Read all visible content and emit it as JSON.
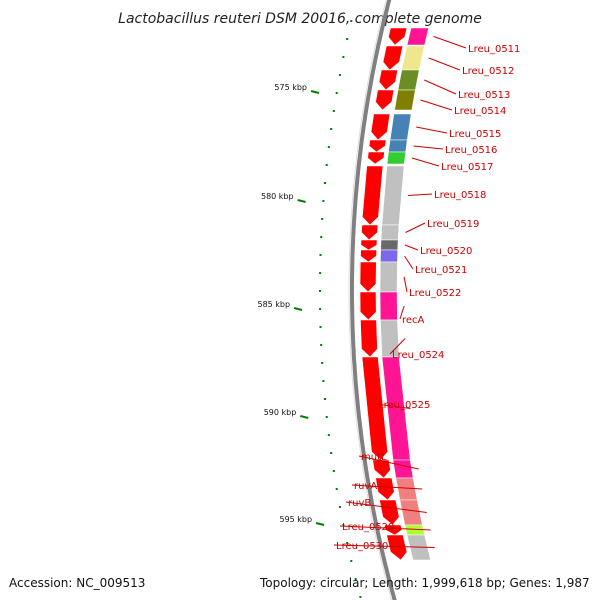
{
  "title": "Lactobacillus reuteri DSM 20016, complete genome",
  "accession": "Accession: NC_009513",
  "topology": "Topology: circular; Length: 1,999,618 bp; Genes: 1,987",
  "kbp_labels": [
    "575 kbp",
    "580 kbp",
    "585 kbp",
    "590 kbp",
    "595 kbp"
  ],
  "genes": [
    {
      "name": "Lreu_0511",
      "color": "#ff1493"
    },
    {
      "name": "Lreu_0512",
      "color": "#f0e68c"
    },
    {
      "name": "Lreu_0513",
      "color": "#6b8e23"
    },
    {
      "name": "Lreu_0514",
      "color": "#808000"
    },
    {
      "name": "Lreu_0515",
      "color": "#4682b4"
    },
    {
      "name": "Lreu_0516",
      "color": "#4682b4"
    },
    {
      "name": "Lreu_0517",
      "color": "#32cd32"
    },
    {
      "name": "Lreu_0518",
      "color": "#c0c0c0"
    },
    {
      "name": "Lreu_0519",
      "color": "#c0c0c0"
    },
    {
      "name": "Lreu_0520",
      "color": "#696969"
    },
    {
      "name": "Lreu_0521",
      "color": "#7b68ee"
    },
    {
      "name": "Lreu_0522",
      "color": "#c0c0c0"
    },
    {
      "name": "recA",
      "color": "#ff1493"
    },
    {
      "name": "Lreu_0524",
      "color": "#c0c0c0"
    },
    {
      "name": "Lreu_0525",
      "color": "#ff1493"
    },
    {
      "name": "mutL",
      "color": "#ff1493"
    },
    {
      "name": "ruvA",
      "color": "#f08080"
    },
    {
      "name": "ruvB",
      "color": "#f08080"
    },
    {
      "name": "Lreu_0529",
      "color": "#adff2f"
    },
    {
      "name": "Lreu_0530",
      "color": "#c0c0c0"
    }
  ],
  "colors": {
    "cds_arrow": "#ff0000",
    "gc_skew": "#008000",
    "backbone": "#808080",
    "label_line": "#cc0000"
  }
}
